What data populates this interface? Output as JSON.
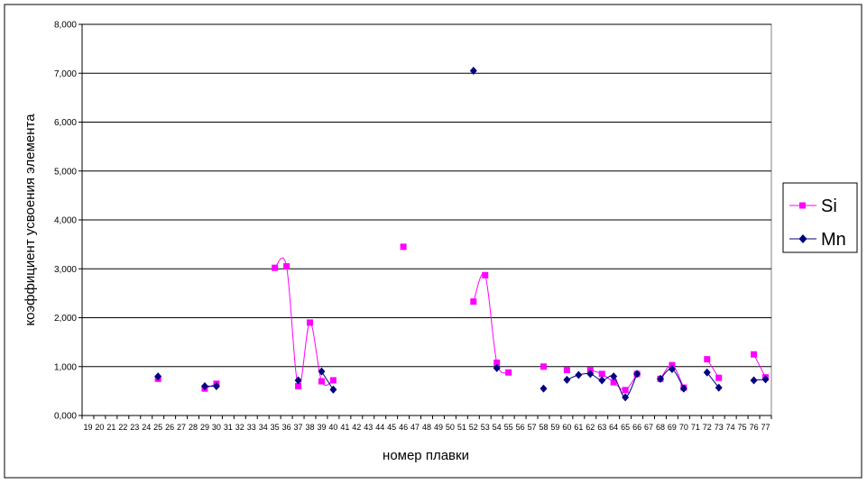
{
  "chart_data": {
    "type": "line",
    "title": "",
    "xlabel": "номер плавки",
    "ylabel": "коэффициент усвоения элемента",
    "ylim": [
      0,
      8
    ],
    "yticks": [
      "0,000",
      "1,000",
      "2,000",
      "3,000",
      "4,000",
      "5,000",
      "6,000",
      "7,000",
      "8,000"
    ],
    "grid": "horizontal",
    "legend_position": "right",
    "categories": [
      19,
      20,
      21,
      22,
      23,
      24,
      25,
      26,
      27,
      28,
      29,
      30,
      31,
      32,
      33,
      34,
      35,
      36,
      37,
      38,
      39,
      40,
      41,
      42,
      43,
      44,
      45,
      46,
      47,
      48,
      49,
      50,
      51,
      52,
      53,
      54,
      55,
      56,
      57,
      58,
      59,
      60,
      61,
      62,
      63,
      64,
      65,
      66,
      67,
      68,
      69,
      70,
      71,
      72,
      73,
      74,
      75,
      76,
      77
    ],
    "series": [
      {
        "name": "Si",
        "color": "#ff00ff",
        "marker": "square",
        "values": {
          "25": 0.75,
          "29": 0.55,
          "30": 0.65,
          "35": 3.02,
          "36": 3.05,
          "37": 0.6,
          "38": 1.9,
          "39": 0.7,
          "40": 0.72,
          "46": 3.45,
          "52": 2.33,
          "53": 2.87,
          "54": 1.08,
          "55": 0.88,
          "58": 1.0,
          "60": 0.93,
          "62": 0.93,
          "63": 0.85,
          "64": 0.68,
          "65": 0.52,
          "66": 0.85,
          "68": 0.75,
          "69": 1.03,
          "70": 0.57,
          "72": 1.15,
          "73": 0.77,
          "76": 1.25,
          "77": 0.78
        }
      },
      {
        "name": "Mn",
        "color": "#000080",
        "marker": "diamond",
        "values": {
          "25": 0.8,
          "29": 0.6,
          "30": 0.6,
          "37": 0.72,
          "39": 0.9,
          "40": 0.53,
          "52": 7.05,
          "54": 0.97,
          "58": 0.55,
          "60": 0.73,
          "61": 0.83,
          "62": 0.85,
          "63": 0.72,
          "64": 0.8,
          "65": 0.37,
          "66": 0.85,
          "68": 0.75,
          "69": 0.95,
          "70": 0.55,
          "72": 0.88,
          "73": 0.57,
          "76": 0.72,
          "77": 0.74
        }
      }
    ]
  }
}
